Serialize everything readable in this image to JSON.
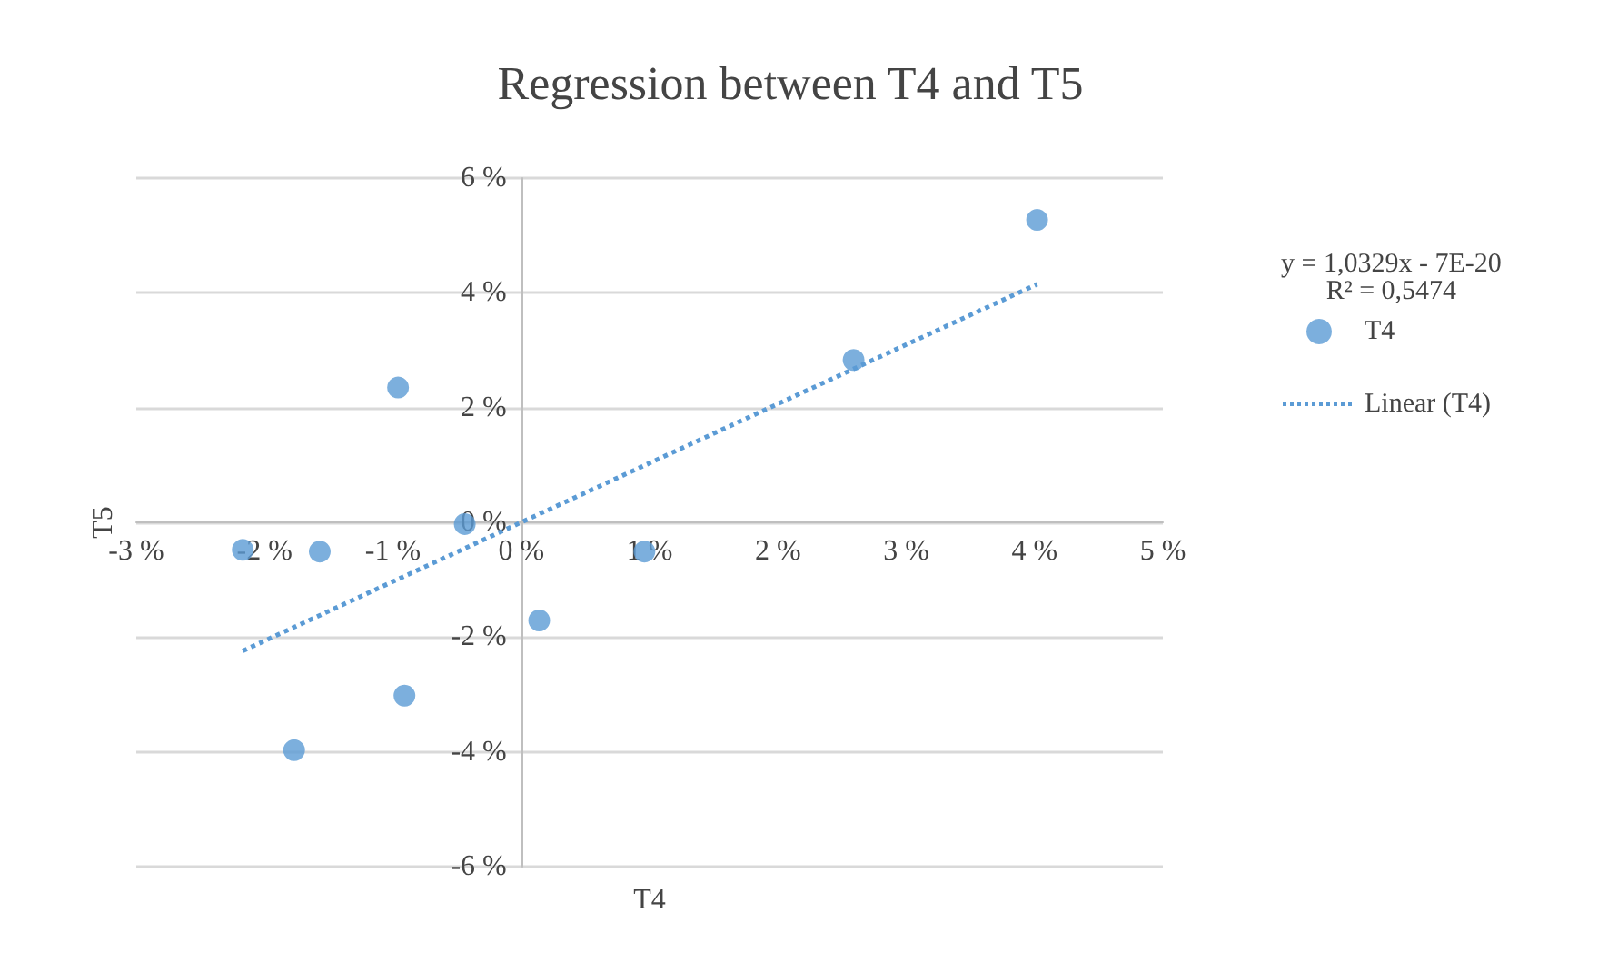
{
  "chart_data": {
    "type": "scatter",
    "title": "Regression between T4 and T5",
    "xlabel": "T4",
    "ylabel": "T5",
    "xlim": [
      -3,
      5
    ],
    "ylim": [
      -6,
      6
    ],
    "xticks": [
      {
        "value": -3,
        "label": "-3 %"
      },
      {
        "value": -2,
        "label": "-2 %"
      },
      {
        "value": -1,
        "label": "-1 %"
      },
      {
        "value": 0,
        "label": "0 %"
      },
      {
        "value": 1,
        "label": "1 %"
      },
      {
        "value": 2,
        "label": "2 %"
      },
      {
        "value": 3,
        "label": "3 %"
      },
      {
        "value": 4,
        "label": "4 %"
      },
      {
        "value": 5,
        "label": "5 %"
      }
    ],
    "yticks": [
      {
        "value": -6,
        "label": "-6 %"
      },
      {
        "value": -4,
        "label": "-4 %"
      },
      {
        "value": -2,
        "label": "-2 %"
      },
      {
        "value": 0,
        "label": "0 %"
      },
      {
        "value": 2,
        "label": "2 %"
      },
      {
        "value": 4,
        "label": "4 %"
      },
      {
        "value": 6,
        "label": "6 %"
      }
    ],
    "grid": "y",
    "legend": "right",
    "marker": "circle",
    "annotations": [
      "y = 1,0329x - 7E-20\nR² = 0,5474"
    ],
    "series": [
      {
        "name": "T4",
        "type": "scatter",
        "color": "#5b9bd5",
        "x": [
          -2.17,
          -1.57,
          -0.96,
          -0.44,
          -1.77,
          -0.91,
          0.14,
          0.96,
          2.59,
          4.02
        ],
        "values": [
          -0.48,
          -0.51,
          2.35,
          -0.03,
          -3.97,
          -3.02,
          -1.71,
          -0.51,
          2.83,
          5.27
        ]
      },
      {
        "name": "Linear (T4)",
        "type": "line",
        "marker": "none",
        "color": "#5b9bd5",
        "line_style": "dotted",
        "x": [
          -2.17,
          4.02
        ],
        "values": [
          -2.24,
          4.15
        ]
      }
    ]
  }
}
